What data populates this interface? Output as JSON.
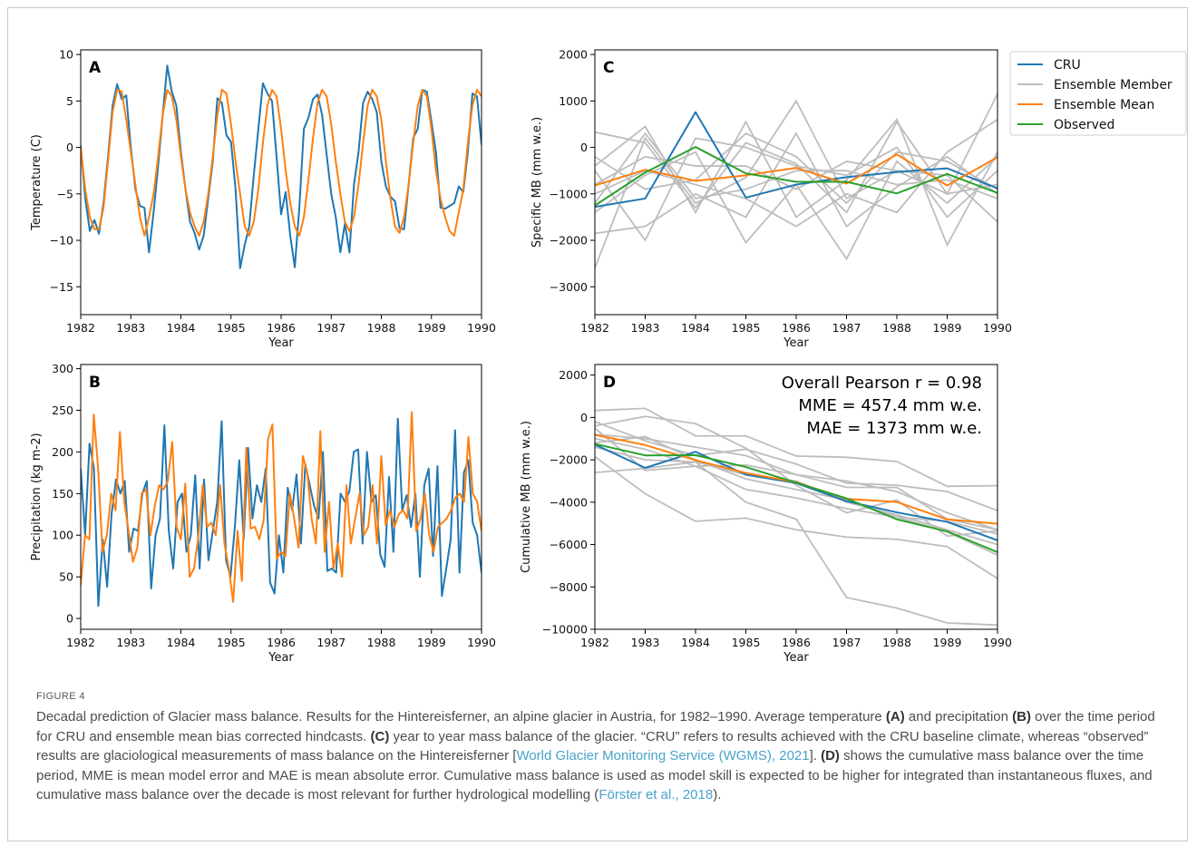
{
  "figure": {
    "label": "FIGURE 4",
    "caption": {
      "p1": "Decadal prediction of Glacier mass balance. Results for the Hintereisferner, an alpine glacier in Austria, for 1982–1990. Average temperature ",
      "bA": "(A)",
      "p2": " and precipitation ",
      "bB": "(B)",
      "p3": " over the time period for CRU and ensemble mean bias corrected hindcasts. ",
      "bC": "(C)",
      "p4": " year to year mass balance of the glacier. “CRU” refers to results achieved with the CRU baseline climate, whereas “observed” results are glaciological measurements of mass balance on the Hintereisferner [",
      "link1": "World Glacier Monitoring Service (WGMS), 2021",
      "p5": "]. ",
      "bD": "(D)",
      "p6": " shows the cumulative mass balance over the time period, MME is mean model error and MAE is mean absolute error. Cumulative mass balance is used as model skill is expected to be higher for integrated than instantaneous fluxes, and cumulative mass balance over the decade is most relevant for further hydrological modelling (",
      "link2": "Förster et al., 2018",
      "p7": ")."
    }
  },
  "colors": {
    "cru": "#1f77b4",
    "member": "#bdbdbd",
    "mean": "#ff7f0e",
    "observed": "#2ca02c"
  },
  "legend": [
    "CRU",
    "Ensemble Member",
    "Ensemble Mean",
    "Observed"
  ],
  "chart_data": [
    {
      "panel": "A",
      "type": "line",
      "xlabel": "Year",
      "ylabel": "Temperature (C)",
      "xlim": [
        1982,
        1990
      ],
      "ylim": [
        -18,
        10.5
      ],
      "yticks": [
        10,
        5,
        0,
        -5,
        -10,
        -15
      ],
      "xticks": [
        1982,
        1983,
        1984,
        1985,
        1986,
        1987,
        1988,
        1989,
        1990
      ],
      "series": [
        {
          "name": "CRU",
          "key": "cru",
          "values": [
            0.2,
            -5.5,
            -9.0,
            -7.8,
            -9.3,
            -6.0,
            -1.0,
            4.5,
            6.8,
            5.2,
            5.6,
            0.0,
            -4.5,
            -6.3,
            -6.5,
            -11.3,
            -7.0,
            -2.0,
            3.5,
            8.8,
            6.0,
            4.5,
            -0.5,
            -4.5,
            -8.0,
            -9.2,
            -11.0,
            -9.5,
            -5.5,
            -1.5,
            5.3,
            4.8,
            1.3,
            0.6,
            -4.5,
            -13.0,
            -10.5,
            -8.5,
            -3.0,
            2.0,
            6.9,
            5.8,
            5.0,
            -1.0,
            -7.2,
            -4.8,
            -9.5,
            -12.9,
            -6.5,
            2.0,
            3.2,
            5.2,
            5.7,
            3.5,
            -0.8,
            -5.0,
            -7.5,
            -11.3,
            -8.2,
            -11.3,
            -4.0,
            -0.5,
            4.8,
            6.0,
            5.2,
            3.8,
            -1.5,
            -4.2,
            -5.3,
            -5.8,
            -8.7,
            -8.8,
            -4.0,
            1.0,
            2.0,
            6.2,
            6.0,
            2.8,
            -0.5,
            -6.5,
            -6.6,
            -6.3,
            -6.0,
            -4.2,
            -4.8,
            -0.5,
            5.8,
            5.5,
            0.3
          ]
        },
        {
          "name": "Ensemble Mean",
          "key": "mean",
          "values": [
            0.0,
            -4.5,
            -7.5,
            -8.8,
            -8.8,
            -6.5,
            -1.5,
            3.8,
            6.2,
            6.0,
            3.0,
            -0.5,
            -4.0,
            -7.5,
            -9.5,
            -7.5,
            -5.0,
            -1.0,
            3.5,
            6.2,
            5.5,
            3.0,
            -1.0,
            -4.5,
            -7.0,
            -8.5,
            -9.5,
            -8.0,
            -5.0,
            -1.0,
            3.5,
            6.2,
            5.8,
            2.5,
            -1.5,
            -5.0,
            -8.5,
            -9.5,
            -8.0,
            -4.5,
            0.5,
            4.5,
            6.2,
            5.5,
            2.0,
            -2.5,
            -6.0,
            -8.5,
            -9.5,
            -7.5,
            -3.5,
            1.0,
            4.8,
            6.2,
            5.5,
            2.5,
            -1.5,
            -5.0,
            -8.0,
            -9.0,
            -7.5,
            -4.0,
            0.5,
            4.5,
            6.2,
            5.5,
            3.0,
            -1.5,
            -5.5,
            -8.5,
            -9.2,
            -7.5,
            -4.0,
            0.5,
            4.5,
            6.2,
            5.5,
            2.0,
            -2.5,
            -5.5,
            -7.5,
            -9.0,
            -9.5,
            -7.0,
            -4.5,
            0.5,
            4.5,
            6.2,
            5.5
          ]
        }
      ]
    },
    {
      "panel": "B",
      "type": "line",
      "xlabel": "Year",
      "ylabel": "Precipitation (kg m-2)",
      "xlim": [
        1982,
        1990
      ],
      "ylim": [
        -13,
        305
      ],
      "yticks": [
        300,
        250,
        200,
        150,
        100,
        50,
        0
      ],
      "xticks": [
        1982,
        1983,
        1984,
        1985,
        1986,
        1987,
        1988,
        1989,
        1990
      ],
      "series": [
        {
          "name": "CRU",
          "key": "cru",
          "values": [
            180,
            100,
            210,
            180,
            15,
            95,
            38,
            125,
            167,
            150,
            165,
            80,
            108,
            105,
            150,
            165,
            36,
            100,
            120,
            232,
            105,
            60,
            140,
            150,
            80,
            100,
            172,
            60,
            167,
            70,
            105,
            140,
            237,
            70,
            50,
            110,
            190,
            95,
            205,
            120,
            160,
            140,
            180,
            43,
            30,
            100,
            55,
            157,
            130,
            173,
            90,
            185,
            160,
            135,
            120,
            200,
            57,
            60,
            55,
            150,
            140,
            153,
            200,
            203,
            90,
            200,
            140,
            148,
            77,
            62,
            170,
            80,
            240,
            130,
            148,
            110,
            150,
            50,
            160,
            180,
            75,
            183,
            27,
            60,
            95,
            226,
            55,
            175,
            190,
            115,
            100,
            55
          ]
        },
        {
          "name": "Ensemble Mean",
          "key": "mean",
          "values": [
            40,
            100,
            95,
            245,
            180,
            80,
            100,
            150,
            130,
            224,
            140,
            105,
            68,
            85,
            150,
            155,
            100,
            135,
            160,
            155,
            165,
            212,
            110,
            95,
            162,
            50,
            60,
            98,
            160,
            110,
            115,
            100,
            160,
            90,
            60,
            20,
            105,
            45,
            205,
            108,
            110,
            95,
            118,
            215,
            233,
            72,
            80,
            75,
            150,
            120,
            85,
            195,
            175,
            120,
            90,
            225,
            80,
            140,
            60,
            90,
            50,
            160,
            90,
            120,
            150,
            100,
            110,
            160,
            90,
            195,
            112,
            130,
            110,
            125,
            130,
            120,
            248,
            105,
            120,
            150,
            100,
            80,
            110,
            115,
            120,
            130,
            145,
            150,
            140,
            218,
            150,
            140,
            105
          ]
        }
      ]
    },
    {
      "panel": "C",
      "type": "line",
      "xlabel": "Year",
      "ylabel": "Specific MB (mm w.e.)",
      "xlim": [
        1982,
        1990
      ],
      "ylim": [
        -3600,
        2100
      ],
      "yticks": [
        2000,
        1000,
        0,
        -1000,
        -2000,
        -3000
      ],
      "xticks": [
        1982,
        1983,
        1984,
        1985,
        1986,
        1987,
        1988,
        1989,
        1990
      ],
      "x": [
        1982,
        1983,
        1984,
        1985,
        1986,
        1987,
        1988,
        1989,
        1990
      ],
      "members": [
        [
          330,
          100,
          -1300,
          100,
          -350,
          -1400,
          550,
          -1000,
          1150
        ],
        [
          -400,
          450,
          -1400,
          550,
          -1500,
          -700,
          600,
          -2100,
          -100
        ],
        [
          -1850,
          -1700,
          -1000,
          -1500,
          300,
          -1700,
          -850,
          -200,
          -1000
        ],
        [
          -2600,
          200,
          -1200,
          -650,
          1000,
          -1100,
          -500,
          -600,
          -1600
        ],
        [
          -500,
          -2000,
          200,
          0,
          -400,
          -600,
          0,
          -1500,
          -500
        ],
        [
          -1400,
          -600,
          -100,
          -2050,
          -800,
          -2400,
          -300,
          -1200,
          -200
        ],
        [
          -1000,
          -500,
          -800,
          -1100,
          -1700,
          -1000,
          -1400,
          -100,
          600
        ],
        [
          -800,
          -200,
          -400,
          -400,
          -900,
          -300,
          -500,
          -1000,
          -800
        ],
        [
          -200,
          -900,
          -700,
          300,
          -200,
          -1200,
          -100,
          -300,
          -900
        ],
        [
          -1200,
          300,
          -1100,
          -900,
          -500,
          -500,
          -800,
          -700,
          -1100
        ]
      ],
      "series": [
        {
          "name": "CRU",
          "key": "cru",
          "values": [
            -1280,
            -1100,
            760,
            -1080,
            -800,
            -640,
            -530,
            -450,
            -880
          ]
        },
        {
          "name": "Ensemble Mean",
          "key": "mean",
          "values": [
            -820,
            -480,
            -720,
            -600,
            -440,
            -780,
            -150,
            -820,
            -210
          ]
        },
        {
          "name": "Observed",
          "key": "observed",
          "values": [
            -1250,
            -540,
            10,
            -560,
            -740,
            -740,
            -990,
            -570,
            -980
          ]
        }
      ]
    },
    {
      "panel": "D",
      "type": "line",
      "xlabel": "Year",
      "ylabel": "Cumulative MB (mm w.e.)",
      "xlim": [
        1982,
        1990
      ],
      "ylim": [
        -10000,
        2500
      ],
      "yticks": [
        2000,
        0,
        -2000,
        -4000,
        -6000,
        -8000,
        -10000
      ],
      "xticks": [
        1982,
        1983,
        1984,
        1985,
        1986,
        1987,
        1988,
        1989,
        1990
      ],
      "x": [
        1982,
        1983,
        1984,
        1985,
        1986,
        1987,
        1988,
        1989,
        1990
      ],
      "annotations": [
        "Overall Pearson r = 0.98",
        "MME = 457.4 mm w.e.",
        "MAE = 1373 mm w.e."
      ],
      "members": [
        [
          330,
          430,
          -870,
          -870,
          -1820,
          -1880,
          -2080,
          -3250,
          -3220
        ],
        [
          -400,
          50,
          -290,
          -1450,
          -3200,
          -4500,
          -3900,
          -5600,
          -5350
        ],
        [
          -1850,
          -3600,
          -4900,
          -4750,
          -5300,
          -5650,
          -5750,
          -6100,
          -7600
        ],
        [
          -2600,
          -2400,
          -2100,
          -2700,
          -3000,
          -4000,
          -4600,
          -5300,
          -6000
        ],
        [
          -500,
          -2500,
          -2300,
          -2250,
          -2700,
          -3300,
          -3300,
          -4800,
          -5300
        ],
        [
          -1400,
          -2000,
          -2100,
          -4000,
          -4800,
          -8500,
          -9000,
          -9700,
          -9800
        ],
        [
          -1000,
          -1500,
          -2300,
          -3400,
          -3800,
          -4300,
          -4700,
          -4900,
          -5500
        ],
        [
          -800,
          -1000,
          -1400,
          -1800,
          -2700,
          -3000,
          -3500,
          -4500,
          -5300
        ],
        [
          -200,
          -1100,
          -1800,
          -1500,
          -2200,
          -3100,
          -3200,
          -3500,
          -4400
        ],
        [
          -1200,
          -900,
          -2000,
          -2900,
          -3400,
          -3900,
          -4700,
          -5400,
          -6500
        ]
      ],
      "series": [
        {
          "name": "CRU",
          "key": "cru",
          "values": [
            -1280,
            -2380,
            -1620,
            -2700,
            -3100,
            -3950,
            -4480,
            -4930,
            -5800
          ]
        },
        {
          "name": "Ensemble Mean",
          "key": "mean",
          "values": [
            -820,
            -1300,
            -2020,
            -2620,
            -3060,
            -3840,
            -3990,
            -4810,
            -5020
          ]
        },
        {
          "name": "Observed",
          "key": "observed",
          "values": [
            -1250,
            -1790,
            -1780,
            -2340,
            -3080,
            -3820,
            -4810,
            -5380,
            -6360
          ]
        }
      ]
    }
  ]
}
